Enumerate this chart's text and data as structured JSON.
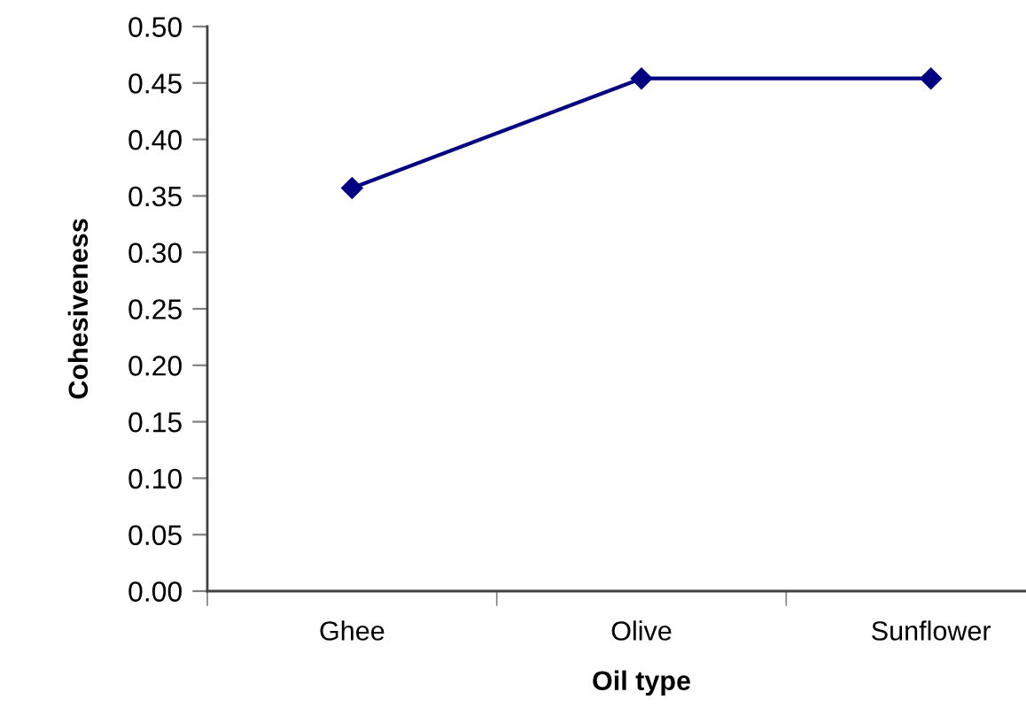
{
  "chart_data": {
    "type": "line",
    "xlabel": "Oil type",
    "ylabel": "Cohesiveness",
    "categories": [
      "Ghee",
      "Olive",
      "Sunflower"
    ],
    "series": [
      {
        "color": "#000080",
        "values": [
          0.357,
          0.454,
          0.454
        ]
      }
    ],
    "ylim": [
      0,
      0.5
    ],
    "yticks": [
      {
        "value": 0,
        "label": "0.00"
      },
      {
        "value": 0.05,
        "label": "0.05"
      },
      {
        "value": 0.1,
        "label": "0.10"
      },
      {
        "value": 0.15,
        "label": "0.15"
      },
      {
        "value": 0.2,
        "label": "0.20"
      },
      {
        "value": 0.25,
        "label": "0.25"
      },
      {
        "value": 0.3,
        "label": "0.30"
      },
      {
        "value": 0.35,
        "label": "0.35"
      },
      {
        "value": 0.4,
        "label": "0.40"
      },
      {
        "value": 0.45,
        "label": "0.45"
      },
      {
        "value": 0.5,
        "label": "0.50"
      }
    ],
    "grid": false,
    "legend": false,
    "marker": "diamond",
    "line_style": "solid"
  }
}
